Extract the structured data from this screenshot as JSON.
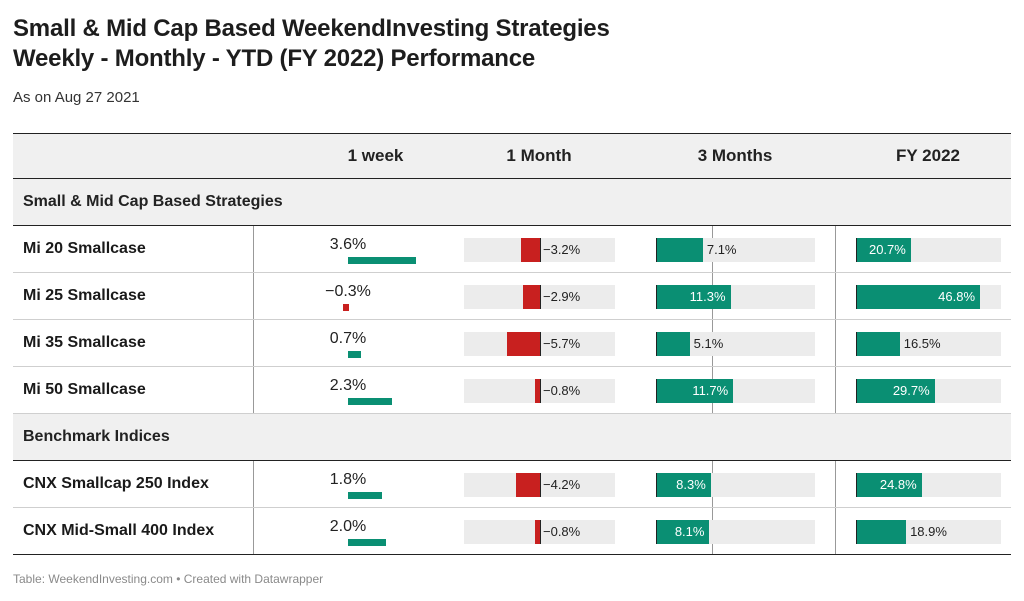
{
  "title_line1": "Small & Mid Cap Based WeekendInvesting Strategies",
  "title_line2": "Weekly - Monthly - YTD (FY 2022) Performance",
  "subtitle": "As on Aug 27 2021",
  "footer": "Table: WeekendInvesting.com • Created with Datawrapper",
  "colors": {
    "positive": "#0a8f73",
    "negative": "#c8201f",
    "track": "#ececec",
    "header_bg": "#f0f0f0"
  },
  "chart_data": {
    "type": "table",
    "columns": [
      "1 week",
      "1 Month",
      "3 Months",
      "FY 2022"
    ],
    "sections": [
      {
        "title": "Small & Mid Cap Based Strategies",
        "rows": [
          {
            "name": "Mi 20 Smallcase",
            "values": [
              3.6,
              -3.2,
              7.1,
              20.7
            ],
            "labels": [
              "3.6%",
              "−3.2%",
              "7.1%",
              "20.7%"
            ]
          },
          {
            "name": "Mi 25 Smallcase",
            "values": [
              -0.3,
              -2.9,
              11.3,
              46.8
            ],
            "labels": [
              "−0.3%",
              "−2.9%",
              "11.3%",
              "46.8%"
            ]
          },
          {
            "name": "Mi 35 Smallcase",
            "values": [
              0.7,
              -5.7,
              5.1,
              16.5
            ],
            "labels": [
              "0.7%",
              "−5.7%",
              "5.1%",
              "16.5%"
            ]
          },
          {
            "name": "Mi 50 Smallcase",
            "values": [
              2.3,
              -0.8,
              11.7,
              29.7
            ],
            "labels": [
              "2.3%",
              "−0.8%",
              "11.7%",
              "29.7%"
            ]
          }
        ]
      },
      {
        "title": "Benchmark Indices",
        "rows": [
          {
            "name": "CNX Smallcap 250 Index",
            "values": [
              1.8,
              -4.2,
              8.3,
              24.8
            ],
            "labels": [
              "1.8%",
              "−4.2%",
              "8.3%",
              "24.8%"
            ]
          },
          {
            "name": "CNX Mid-Small 400 Index",
            "values": [
              2.0,
              -0.8,
              8.1,
              18.9
            ],
            "labels": [
              "2.0%",
              "−0.8%",
              "8.1%",
              "18.9%"
            ]
          }
        ]
      }
    ]
  }
}
